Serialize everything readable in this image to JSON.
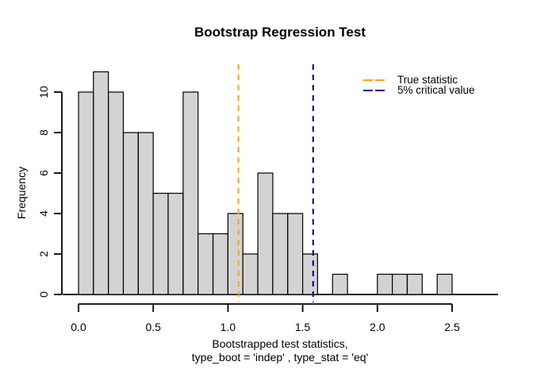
{
  "chart_data": {
    "type": "bar",
    "subtype": "histogram",
    "title": "Bootstrap Regression Test",
    "ylabel": "Frequency",
    "xlabel_lines": [
      "Bootstrapped test statistics,",
      "type_boot = 'indep' , type_stat = 'eq'"
    ],
    "bin_start": 0.0,
    "bin_width": 0.1,
    "counts": [
      10,
      11,
      10,
      8,
      8,
      5,
      5,
      10,
      3,
      3,
      4,
      2,
      6,
      4,
      4,
      2,
      0,
      1,
      0,
      0,
      1,
      1,
      1,
      0,
      1
    ],
    "x_ticks": [
      {
        "value": 0.0,
        "label": "0.0"
      },
      {
        "value": 0.5,
        "label": "0.5"
      },
      {
        "value": 1.0,
        "label": "1.0"
      },
      {
        "value": 1.5,
        "label": "1.5"
      },
      {
        "value": 2.0,
        "label": "2.0"
      },
      {
        "value": 2.5,
        "label": "2.5"
      }
    ],
    "y_ticks": [
      {
        "value": 0,
        "label": "0"
      },
      {
        "value": 2,
        "label": "2"
      },
      {
        "value": 4,
        "label": "4"
      },
      {
        "value": 6,
        "label": "6"
      },
      {
        "value": 8,
        "label": "8"
      },
      {
        "value": 10,
        "label": "10"
      }
    ],
    "x_axis_range": [
      0.0,
      2.5
    ],
    "y_axis_range": [
      0,
      10
    ],
    "grid": false,
    "vlines": [
      {
        "x": 1.07,
        "label": "True statistic",
        "color": "#ffa500",
        "style": "dashed"
      },
      {
        "x": 1.57,
        "label": "5% critical value",
        "color": "#000080",
        "style": "dashed"
      }
    ],
    "legend": {
      "position": "topright",
      "items": [
        {
          "label": "True statistic",
          "color": "#ffa500"
        },
        {
          "label": "5% critical value",
          "color": "#000080"
        }
      ]
    },
    "colors": {
      "bar_fill": "#d3d3d3",
      "bar_border": "#000000",
      "axis": "#000000",
      "background": "#ffffff"
    }
  }
}
